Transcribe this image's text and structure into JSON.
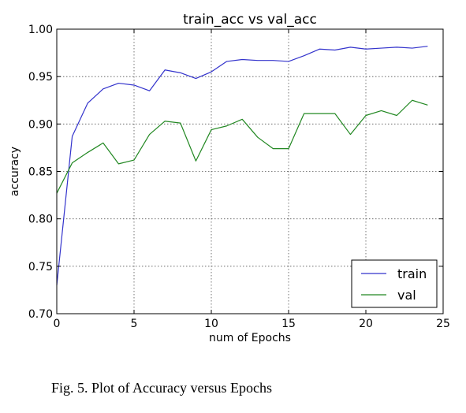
{
  "chart_data": {
    "type": "line",
    "title": "train_acc vs  val_acc",
    "xlabel": "num of Epochs",
    "ylabel": "accuracy",
    "xlim": [
      0,
      25
    ],
    "ylim": [
      0.7,
      1.0
    ],
    "xticks": [
      "0",
      "5",
      "10",
      "15",
      "20",
      "25"
    ],
    "yticks": [
      "0.70",
      "0.75",
      "0.80",
      "0.85",
      "0.90",
      "0.95",
      "1.00"
    ],
    "grid": true,
    "legend_position": "lower-right",
    "x": [
      0,
      1,
      2,
      3,
      4,
      5,
      6,
      7,
      8,
      9,
      10,
      11,
      12,
      13,
      14,
      15,
      16,
      17,
      18,
      19,
      20,
      21,
      22,
      23,
      24
    ],
    "series": [
      {
        "name": "train",
        "color": "#3333cc",
        "values": [
          0.73,
          0.887,
          0.922,
          0.937,
          0.943,
          0.941,
          0.935,
          0.957,
          0.954,
          0.948,
          0.955,
          0.966,
          0.968,
          0.967,
          0.967,
          0.966,
          0.972,
          0.979,
          0.978,
          0.981,
          0.979,
          0.98,
          0.981,
          0.98,
          0.982
        ]
      },
      {
        "name": "val",
        "color": "#228822",
        "values": [
          0.827,
          0.859,
          0.87,
          0.88,
          0.858,
          0.862,
          0.889,
          0.903,
          0.901,
          0.861,
          0.894,
          0.898,
          0.905,
          0.886,
          0.874,
          0.874,
          0.911,
          0.911,
          0.911,
          0.889,
          0.909,
          0.914,
          0.909,
          0.925,
          0.92
        ]
      }
    ]
  },
  "caption": "Fig. 5.  Plot of Accuracy versus Epochs"
}
